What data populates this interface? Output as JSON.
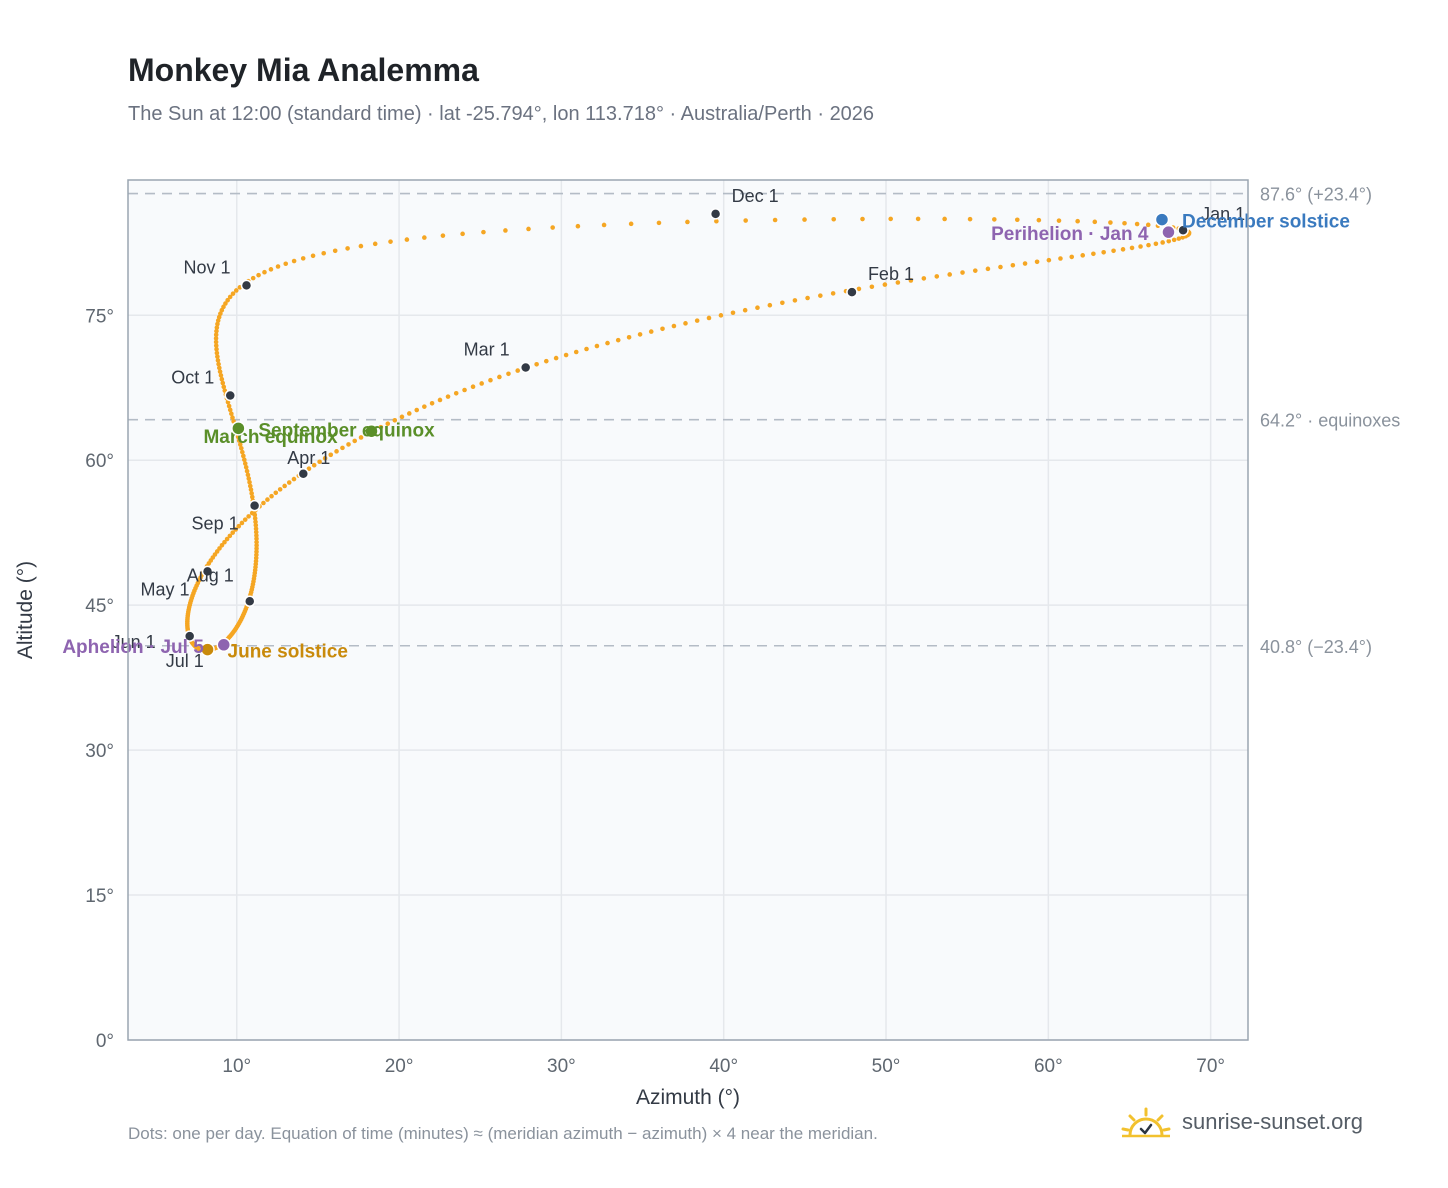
{
  "title": "Monkey Mia Analemma",
  "subtitle": "The Sun at 12:00 (standard time) · lat -25.794°, lon 113.718° · Australia/Perth · 2026",
  "footnote": "Dots: one per day. Equation of time (minutes) ≈ (meridian azimuth − azimuth) × 4 near the meridian.",
  "brand": {
    "name": "sunrise-sunset.org",
    "icon": "sun-logo-icon"
  },
  "colors": {
    "path": "#f5a623",
    "month_marker": "#333a45",
    "equinox": "#5a8f29",
    "june_solstice": "#c98a0b",
    "december_solstice": "#3a7abf",
    "apsis": "#8e64b0",
    "grid": "#e5e8ec",
    "reference_line": "#b4bcc6",
    "plot_bg": "#f8fafc",
    "frame": "#9aa5b1"
  },
  "chart_data": {
    "type": "scatter",
    "xlabel": "Azimuth (°)",
    "ylabel": "Altitude (°)",
    "xlim": [
      3.3,
      72.3
    ],
    "ylim": [
      0,
      89
    ],
    "xticks": [
      10,
      20,
      30,
      40,
      50,
      60,
      70
    ],
    "yticks": [
      0,
      15,
      30,
      45,
      60,
      75
    ],
    "grid": true,
    "reference_lines": [
      {
        "altitude": 87.6,
        "label": "87.6° (+23.4°)"
      },
      {
        "altitude": 64.2,
        "label": "64.2° · equinoxes"
      },
      {
        "altitude": 40.8,
        "label": "40.8° (−23.4°)"
      }
    ],
    "month_markers": [
      {
        "label": "Jan 1",
        "az": 68.3,
        "alt": 83.8
      },
      {
        "label": "Feb 1",
        "az": 47.9,
        "alt": 77.4
      },
      {
        "label": "Mar 1",
        "az": 27.8,
        "alt": 69.6
      },
      {
        "label": "Apr 1",
        "az": 14.1,
        "alt": 58.6
      },
      {
        "label": "May 1",
        "az": 8.2,
        "alt": 48.5
      },
      {
        "label": "Jun 1",
        "az": 7.1,
        "alt": 41.8
      },
      {
        "label": "Jul 1",
        "az": 9.2,
        "alt": 40.9
      },
      {
        "label": "Aug 1",
        "az": 10.8,
        "alt": 45.4
      },
      {
        "label": "Sep 1",
        "az": 11.1,
        "alt": 55.3
      },
      {
        "label": "Oct 1",
        "az": 9.6,
        "alt": 66.7
      },
      {
        "label": "Nov 1",
        "az": 10.6,
        "alt": 78.1
      },
      {
        "label": "Dec 1",
        "az": 39.5,
        "alt": 85.5
      }
    ],
    "events": [
      {
        "label": "March equinox",
        "az": 18.3,
        "alt": 63.0,
        "kind": "equinox"
      },
      {
        "label": "September equinox",
        "az": 10.1,
        "alt": 63.3,
        "kind": "equinox"
      },
      {
        "label": "June solstice",
        "az": 8.2,
        "alt": 40.4,
        "kind": "june_solstice"
      },
      {
        "label": "December solstice",
        "az": 67.0,
        "alt": 84.9,
        "kind": "december_solstice"
      },
      {
        "label": "Aphelion · Jul 5",
        "az": 9.2,
        "alt": 40.9,
        "kind": "apsis"
      },
      {
        "label": "Perihelion · Jan 4",
        "az": 67.4,
        "alt": 83.6,
        "kind": "apsis"
      }
    ]
  }
}
